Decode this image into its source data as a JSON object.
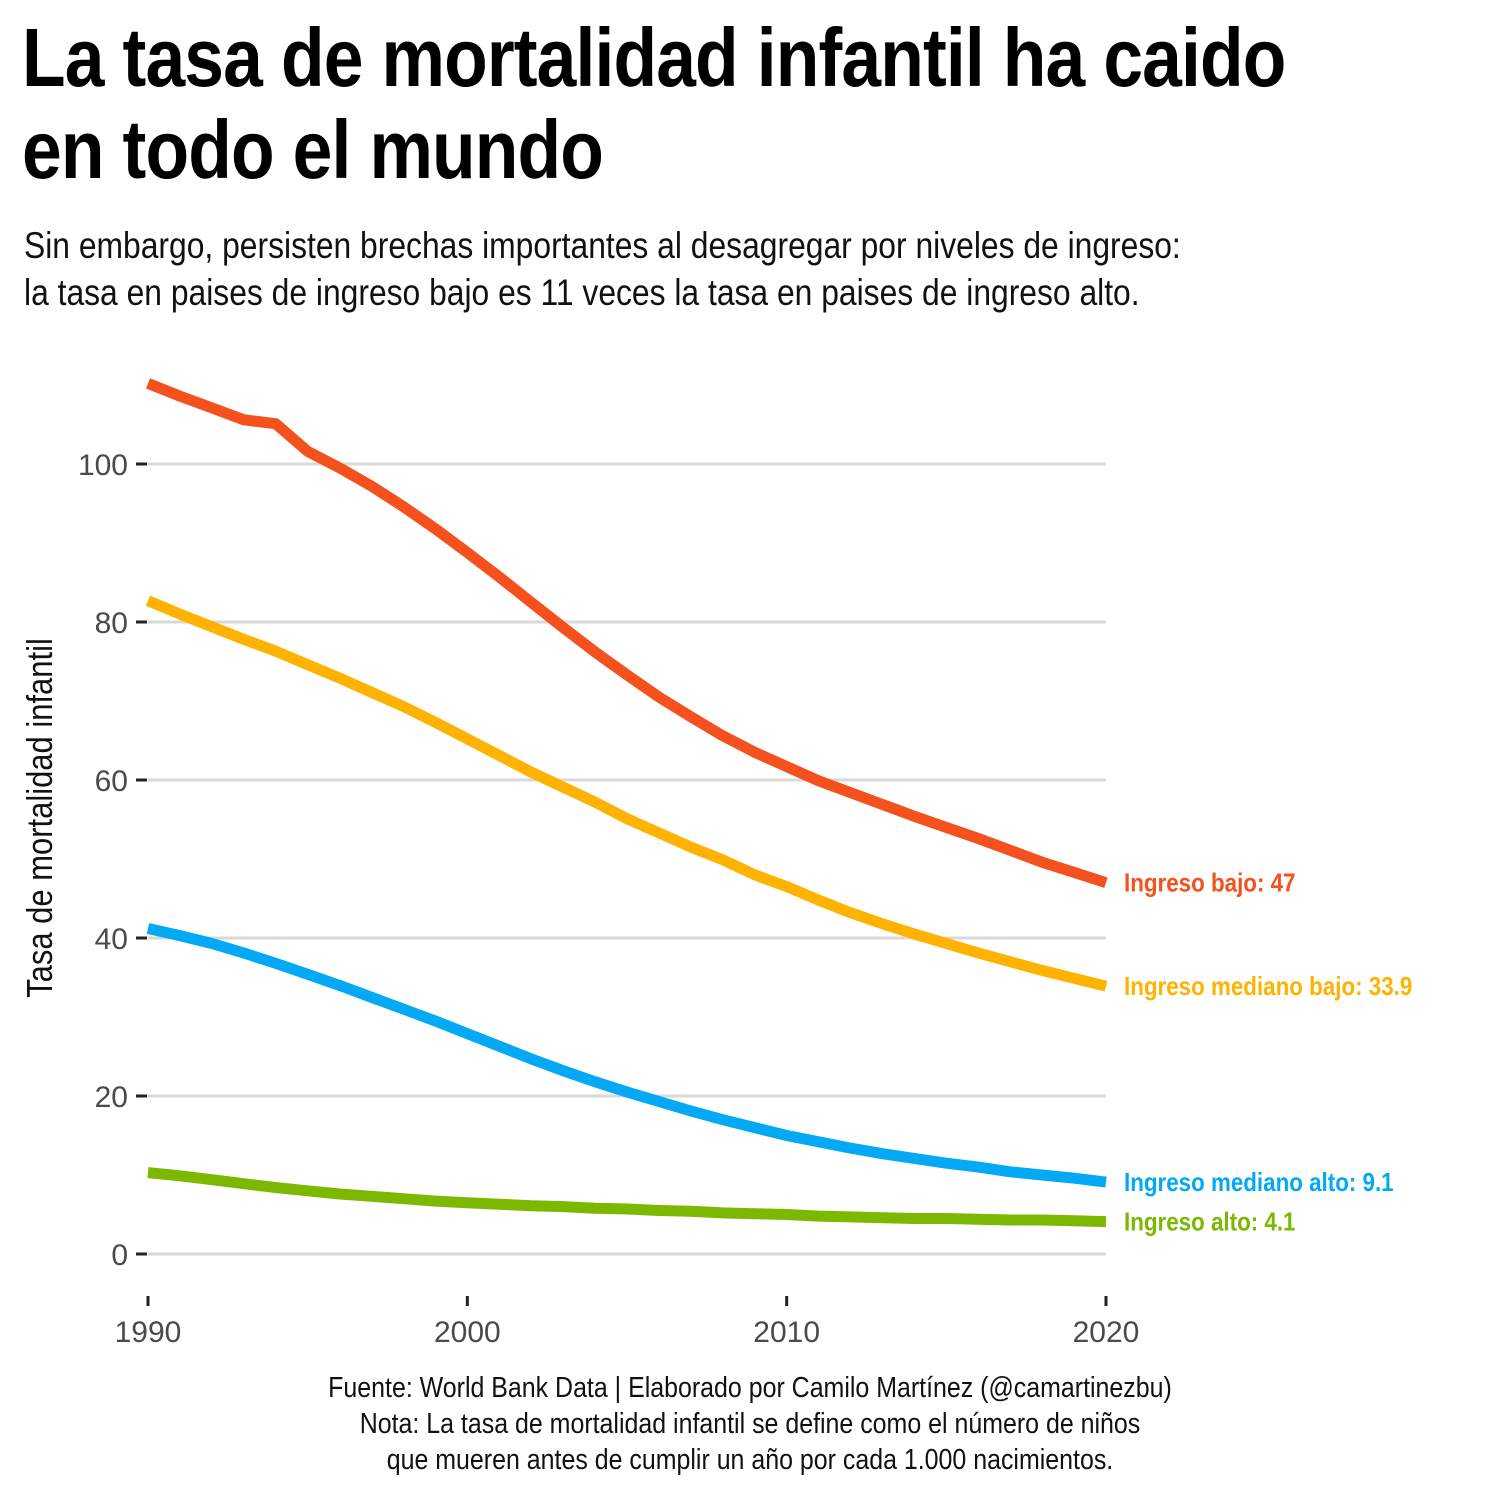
{
  "title_lines": [
    "La tasa de mortalidad infantil ha caido",
    "en todo el mundo"
  ],
  "subtitle_lines": [
    "Sin embargo, persisten brechas importantes al desagregar por niveles de ingreso:",
    "la tasa en paises de ingreso bajo es 11 veces la tasa en paises de ingreso alto."
  ],
  "caption_lines": [
    "Fuente: World Bank Data | Elaborado por Camilo Martínez (@camartinezbu)",
    "Nota: La tasa de mortalidad infantil se define como el número de niños",
    "que mueren antes de cumplir un año por cada 1.000 nacimientos."
  ],
  "chart_data": {
    "type": "line",
    "title": "La tasa de mortalidad infantil ha caido en todo el mundo",
    "xlabel": "",
    "ylabel": "Tasa de mortalidad infantil",
    "xlim": [
      1990,
      2020
    ],
    "ylim": [
      0,
      110
    ],
    "xticks": [
      1990,
      2000,
      2010,
      2020
    ],
    "yticks": [
      0,
      20,
      40,
      60,
      80,
      100
    ],
    "grid": true,
    "legend": "direct labels at line ends",
    "x": [
      1990,
      1991,
      1992,
      1993,
      1994,
      1995,
      1996,
      1997,
      1998,
      1999,
      2000,
      2001,
      2002,
      2003,
      2004,
      2005,
      2006,
      2007,
      2008,
      2009,
      2010,
      2011,
      2012,
      2013,
      2014,
      2015,
      2016,
      2017,
      2018,
      2019,
      2020
    ],
    "series": [
      {
        "name": "Ingreso bajo",
        "label": "Ingreso bajo: 47",
        "color": "#F4511E",
        "values": [
          110.2,
          108.6,
          107.1,
          105.6,
          105.1,
          101.6,
          99.5,
          97.2,
          94.6,
          91.8,
          88.8,
          85.7,
          82.5,
          79.3,
          76.2,
          73.3,
          70.5,
          68.0,
          65.6,
          63.5,
          61.7,
          59.9,
          58.4,
          56.9,
          55.4,
          54.0,
          52.6,
          51.1,
          49.6,
          48.3,
          47.0
        ]
      },
      {
        "name": "Ingreso mediano bajo",
        "label": "Ingreso mediano bajo: 33.9",
        "color": "#FFB300",
        "values": [
          82.7,
          81.0,
          79.4,
          77.8,
          76.3,
          74.6,
          72.9,
          71.1,
          69.3,
          67.3,
          65.2,
          63.1,
          61.0,
          59.1,
          57.2,
          55.1,
          53.3,
          51.5,
          49.9,
          48.0,
          46.5,
          44.8,
          43.2,
          41.8,
          40.5,
          39.3,
          38.1,
          37.0,
          35.9,
          34.9,
          33.9
        ]
      },
      {
        "name": "Ingreso mediano alto",
        "label": "Ingreso mediano alto: 9.1",
        "color": "#03A9F4",
        "values": [
          41.2,
          40.3,
          39.3,
          38.1,
          36.8,
          35.4,
          34.0,
          32.5,
          31.0,
          29.5,
          27.9,
          26.3,
          24.7,
          23.2,
          21.8,
          20.5,
          19.3,
          18.1,
          17.0,
          16.0,
          15.0,
          14.2,
          13.4,
          12.7,
          12.1,
          11.5,
          11.0,
          10.4,
          10.0,
          9.6,
          9.1
        ]
      },
      {
        "name": "Ingreso alto",
        "label": "Ingreso alto: 4.1",
        "color": "#7CB800",
        "values": [
          10.3,
          9.9,
          9.4,
          8.9,
          8.4,
          8.0,
          7.6,
          7.3,
          7.0,
          6.7,
          6.5,
          6.3,
          6.1,
          6.0,
          5.8,
          5.7,
          5.5,
          5.4,
          5.2,
          5.1,
          5.0,
          4.8,
          4.7,
          4.6,
          4.5,
          4.5,
          4.4,
          4.3,
          4.3,
          4.2,
          4.1
        ]
      }
    ]
  }
}
